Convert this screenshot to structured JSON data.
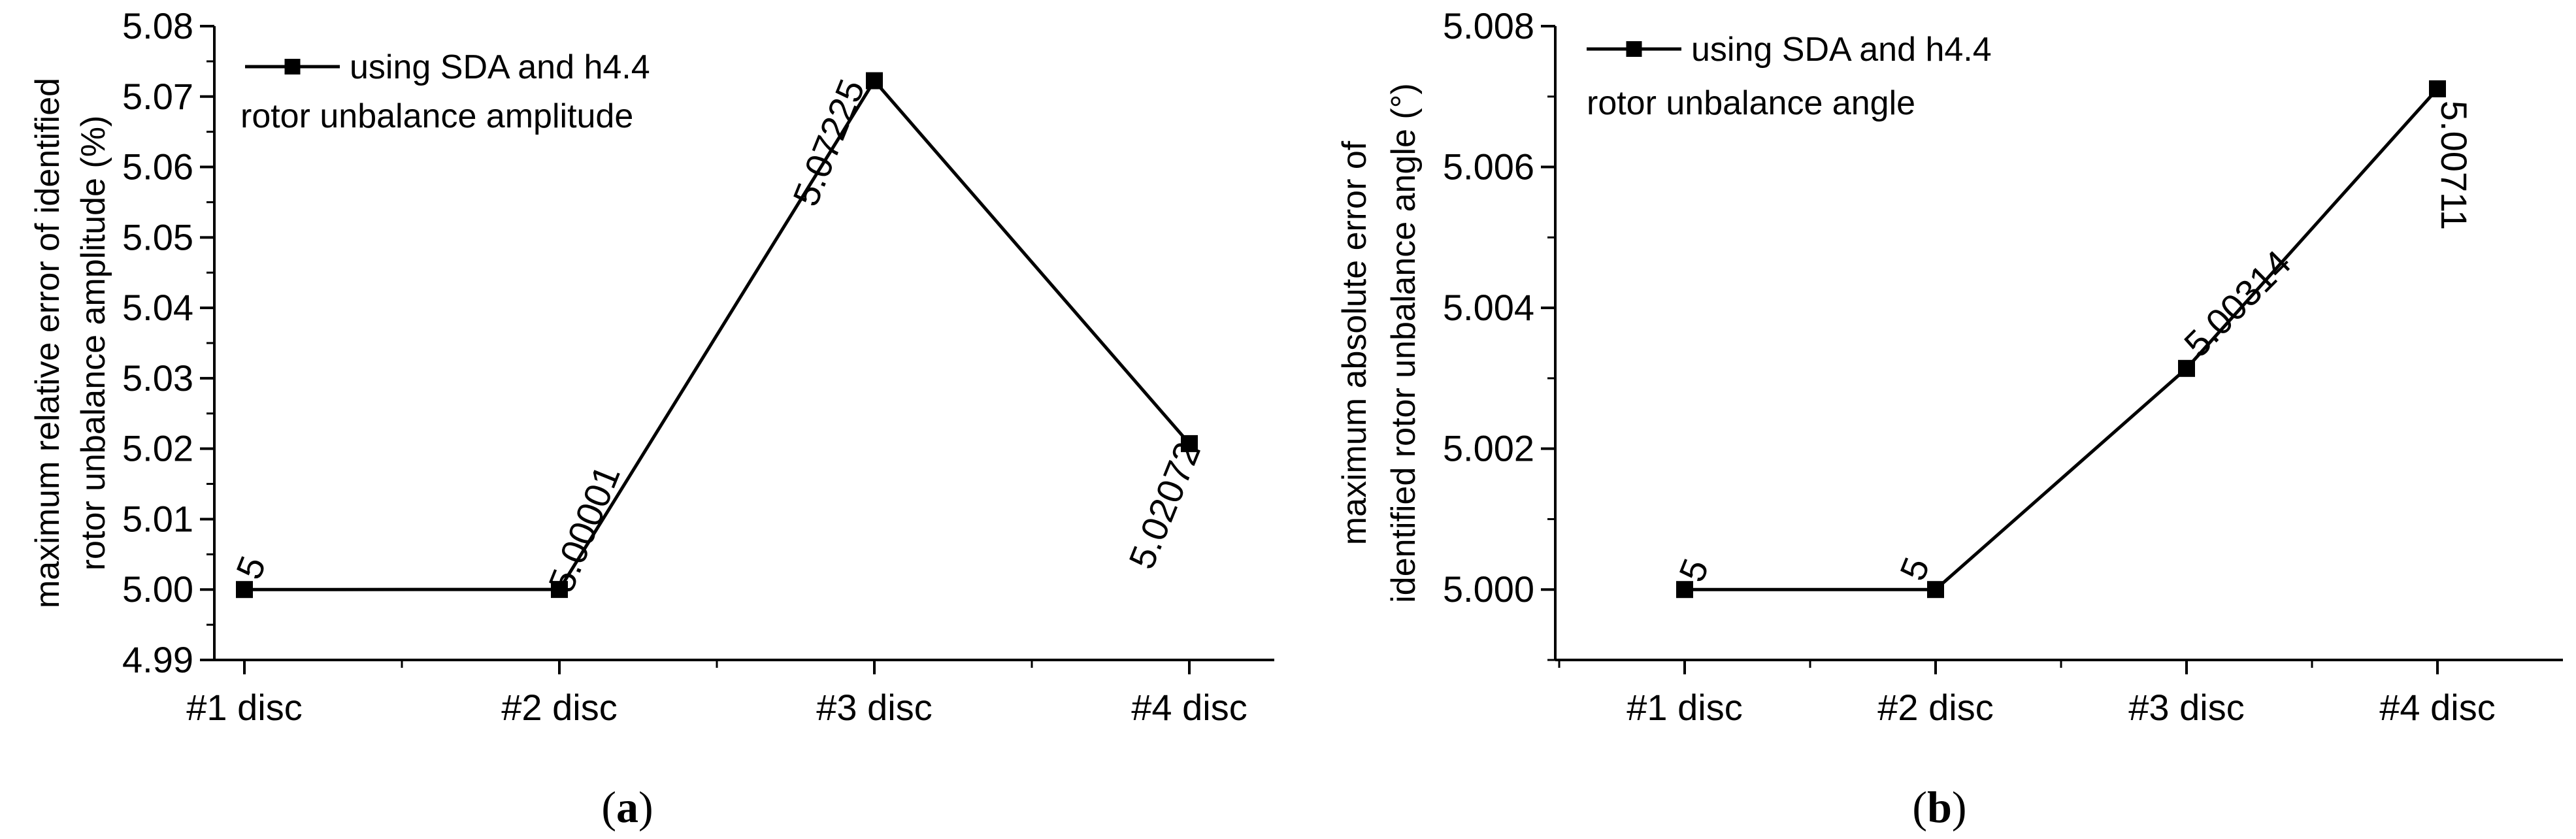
{
  "chart_data": [
    {
      "panel": "(a)",
      "panel_letter": "a",
      "type": "line",
      "categories": [
        "#1 disc",
        "#2 disc",
        "#3 disc",
        "#4 disc"
      ],
      "series": [
        {
          "name": "using SDA and h4.4",
          "values": [
            5,
            5.00001,
            5.07225,
            5.02072
          ]
        }
      ],
      "data_labels": [
        "5",
        "5.00001",
        "5.07225",
        "5.02072"
      ],
      "legend_title": "using SDA and h4.4",
      "legend_subtitle": "rotor unbalance amplitude",
      "ylabel_lines": [
        "maximum relative error of identified",
        "rotor unbalance amplitude (%)"
      ],
      "ylim": [
        4.99,
        5.08
      ],
      "yticks": [
        4.99,
        5.0,
        5.01,
        5.02,
        5.03,
        5.04,
        5.05,
        5.06,
        5.07,
        5.08
      ],
      "ytick_labels": [
        "4.99",
        "5.00",
        "5.01",
        "5.02",
        "5.03",
        "5.04",
        "5.05",
        "5.06",
        "5.07",
        "5.08"
      ],
      "legend_position": "top-left",
      "grid": false
    },
    {
      "panel": "(b)",
      "panel_letter": "b",
      "type": "line",
      "categories": [
        "#1 disc",
        "#2 disc",
        "#3 disc",
        "#4 disc"
      ],
      "series": [
        {
          "name": "using SDA and h4.4",
          "values": [
            5,
            5,
            5.00314,
            5.00711
          ]
        }
      ],
      "data_labels": [
        "5",
        "5",
        "5.00314",
        "5.00711"
      ],
      "legend_title": "using SDA and h4.4",
      "legend_subtitle": "rotor unbalance angle",
      "ylabel_lines": [
        "maximum absolute error of",
        "identified rotor unbalance angle (°)"
      ],
      "ylim": [
        4.999,
        5.008
      ],
      "yticks": [
        5.0,
        5.002,
        5.004,
        5.006,
        5.008
      ],
      "ytick_labels": [
        "5.000",
        "5.002",
        "5.004",
        "5.006",
        "5.008"
      ],
      "legend_position": "top-left",
      "grid": false
    }
  ]
}
